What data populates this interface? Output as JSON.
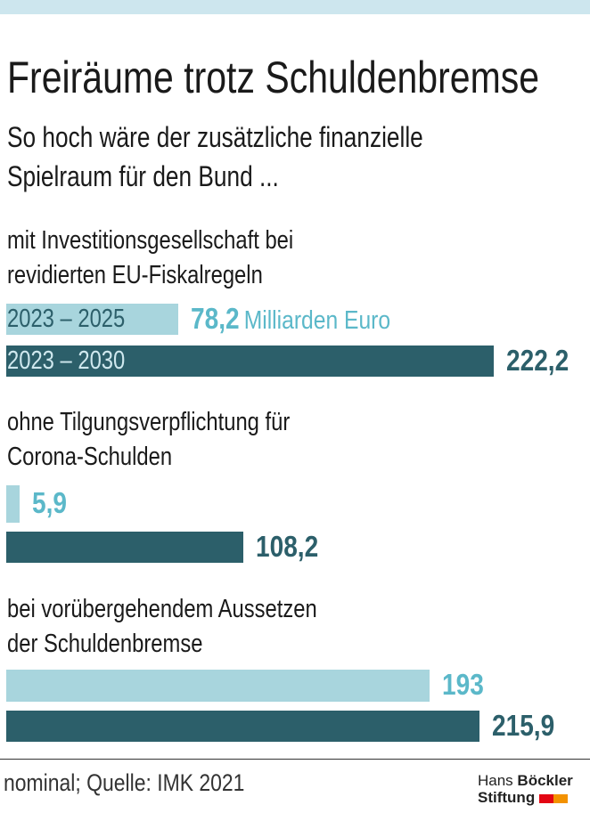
{
  "title": "Freiräume trotz Schuldenbremse",
  "subtitle_lines": [
    "So hoch wäre der zusätzliche finanzielle",
    "Spielraum für den Bund ..."
  ],
  "footer": "nominal; Quelle: IMK 2021",
  "logo": {
    "line1_light": "Hans",
    "line1_bold": "Böckler",
    "line2": "Stiftung",
    "colors": [
      "#e30613",
      "#f39200"
    ]
  },
  "chart_data": {
    "type": "bar",
    "orientation": "horizontal",
    "unit": "Milliarden Euro",
    "colors": {
      "2023 – 2025": "#a8d5dd",
      "2023 – 2030": "#2c5f6a",
      "light_label": "#5bb8c9"
    },
    "series": [
      {
        "name": "2023 – 2025",
        "values": [
          78.2,
          5.9,
          193
        ]
      },
      {
        "name": "2023 – 2030",
        "values": [
          222.2,
          108.2,
          215.9
        ]
      }
    ],
    "categories": [
      {
        "lines": [
          "mit Investitionsgesellschaft bei",
          "revidierten EU-Fiskalregeln"
        ]
      },
      {
        "lines": [
          "ohne Tilgungsverpflichtung für",
          "Corona-Schulden"
        ]
      },
      {
        "lines": [
          "bei vorübergehendem Aussetzen",
          "der Schuldenbremse"
        ]
      }
    ],
    "labels": [
      [
        "78,2",
        "222,2"
      ],
      [
        "5,9",
        "108,2"
      ],
      [
        "193",
        "215,9"
      ]
    ],
    "xlim": [
      0,
      222.2
    ]
  }
}
